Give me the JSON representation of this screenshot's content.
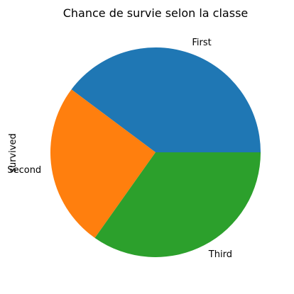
{
  "chart_data": {
    "type": "pie",
    "title": "Chance de survie selon la classe",
    "ylabel": "survived",
    "labels": [
      "First",
      "Second",
      "Third"
    ],
    "values": [
      136,
      87,
      119
    ],
    "colors": [
      "#1f77b4",
      "#ff7f0e",
      "#2ca02c"
    ],
    "start_angle": 0,
    "direction": "counterclockwise",
    "legend": "none"
  }
}
